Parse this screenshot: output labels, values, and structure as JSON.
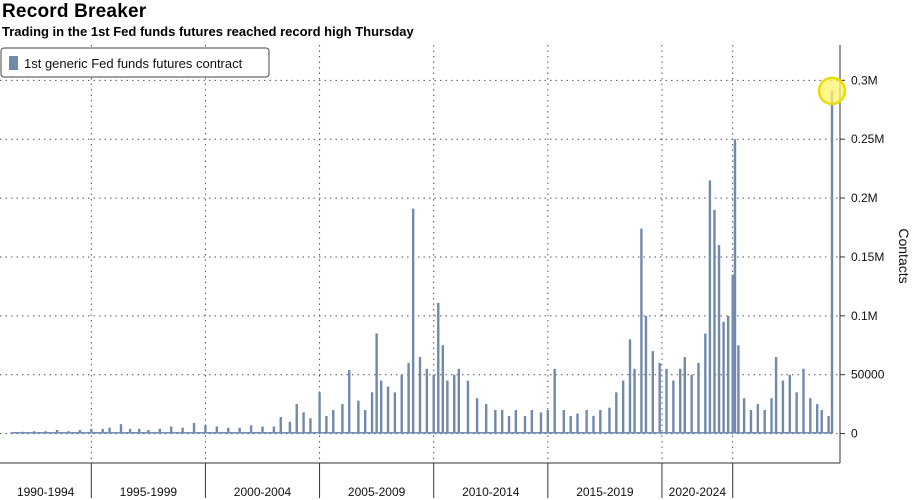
{
  "header": {
    "title": "Record Breaker",
    "subtitle": "Trading in the 1st Fed funds futures reached record high Thursday"
  },
  "legend": {
    "label": "1st generic Fed funds futures contract"
  },
  "colors": {
    "bar": "#7089ad",
    "highlight_fill": "#fff36b",
    "highlight_stroke": "#e8dc00",
    "grid": "#555555"
  },
  "chart_data": {
    "type": "bar",
    "title": "Record Breaker",
    "subtitle": "Trading in the 1st Fed funds futures reached record high Thursday",
    "ylabel": "Contacts",
    "xlabel": "",
    "xlim": [
      1988,
      2024.8
    ],
    "ylim": [
      -25000,
      330000
    ],
    "y_ticks": [
      0,
      50000,
      100000,
      150000,
      200000,
      250000,
      300000
    ],
    "y_tick_labels": [
      "0",
      "50000",
      "0.1M",
      "0.15M",
      "0.2M",
      "0.25M",
      "0.3M"
    ],
    "x_periods": [
      "1990-1994",
      "1995-1999",
      "2000-2004",
      "2005-2009",
      "2010-2014",
      "2015-2019",
      "2020-2024"
    ],
    "x_period_bounds": [
      1988,
      1992,
      1997,
      2002,
      2007,
      2012,
      2017,
      2020.1,
      2024.8
    ],
    "grid": true,
    "legend_position": "top-left",
    "series": [
      {
        "name": "1st generic Fed funds futures contract",
        "points": [
          [
            1988.5,
            1000
          ],
          [
            1989.0,
            1500
          ],
          [
            1989.5,
            2000
          ],
          [
            1990.0,
            2000
          ],
          [
            1990.5,
            3000
          ],
          [
            1991.0,
            2000
          ],
          [
            1991.5,
            3000
          ],
          [
            1992.0,
            4000
          ],
          [
            1992.5,
            4000
          ],
          [
            1992.8,
            5000
          ],
          [
            1993.3,
            8000
          ],
          [
            1993.7,
            4000
          ],
          [
            1994.1,
            4000
          ],
          [
            1994.5,
            3000
          ],
          [
            1995.0,
            4000
          ],
          [
            1995.5,
            6000
          ],
          [
            1996.0,
            5000
          ],
          [
            1996.5,
            9000
          ],
          [
            1997.0,
            7000
          ],
          [
            1997.5,
            6000
          ],
          [
            1998.0,
            5000
          ],
          [
            1998.5,
            5000
          ],
          [
            1999.0,
            7000
          ],
          [
            1999.5,
            6000
          ],
          [
            2000.0,
            6000
          ],
          [
            2000.3,
            14000
          ],
          [
            2000.7,
            10000
          ],
          [
            2001.0,
            25000
          ],
          [
            2001.3,
            18000
          ],
          [
            2001.6,
            13000
          ],
          [
            2002.0,
            35000
          ],
          [
            2002.3,
            15000
          ],
          [
            2002.6,
            20000
          ],
          [
            2003.0,
            25000
          ],
          [
            2003.3,
            54000
          ],
          [
            2003.7,
            28000
          ],
          [
            2004.0,
            20000
          ],
          [
            2004.3,
            35000
          ],
          [
            2004.5,
            85000
          ],
          [
            2004.7,
            45000
          ],
          [
            2005.0,
            40000
          ],
          [
            2005.3,
            35000
          ],
          [
            2005.6,
            50000
          ],
          [
            2005.9,
            60000
          ],
          [
            2006.1,
            191000
          ],
          [
            2006.4,
            65000
          ],
          [
            2006.7,
            55000
          ],
          [
            2007.0,
            50000
          ],
          [
            2007.2,
            111000
          ],
          [
            2007.4,
            75000
          ],
          [
            2007.6,
            45000
          ],
          [
            2007.9,
            50000
          ],
          [
            2008.1,
            55000
          ],
          [
            2008.5,
            45000
          ],
          [
            2008.9,
            30000
          ],
          [
            2009.3,
            25000
          ],
          [
            2009.7,
            20000
          ],
          [
            2010.0,
            20000
          ],
          [
            2010.3,
            15000
          ],
          [
            2010.6,
            20000
          ],
          [
            2011.0,
            15000
          ],
          [
            2011.3,
            20000
          ],
          [
            2011.7,
            18000
          ],
          [
            2012.0,
            20000
          ],
          [
            2012.3,
            55000
          ],
          [
            2012.7,
            20000
          ],
          [
            2013.0,
            15000
          ],
          [
            2013.3,
            17000
          ],
          [
            2013.7,
            20000
          ],
          [
            2014.0,
            15000
          ],
          [
            2014.3,
            20000
          ],
          [
            2014.7,
            22000
          ],
          [
            2015.0,
            35000
          ],
          [
            2015.3,
            45000
          ],
          [
            2015.6,
            80000
          ],
          [
            2015.8,
            55000
          ],
          [
            2016.1,
            174000
          ],
          [
            2016.3,
            100000
          ],
          [
            2016.6,
            70000
          ],
          [
            2016.9,
            60000
          ],
          [
            2017.2,
            55000
          ],
          [
            2017.5,
            45000
          ],
          [
            2017.8,
            55000
          ],
          [
            2018.0,
            65000
          ],
          [
            2018.3,
            50000
          ],
          [
            2018.6,
            60000
          ],
          [
            2018.9,
            85000
          ],
          [
            2019.1,
            215000
          ],
          [
            2019.3,
            190000
          ],
          [
            2019.5,
            160000
          ],
          [
            2019.7,
            95000
          ],
          [
            2019.9,
            100000
          ],
          [
            2020.1,
            135000
          ],
          [
            2020.2,
            250000
          ],
          [
            2020.35,
            75000
          ],
          [
            2020.6,
            30000
          ],
          [
            2020.9,
            20000
          ],
          [
            2021.2,
            25000
          ],
          [
            2021.5,
            20000
          ],
          [
            2021.8,
            30000
          ],
          [
            2022.0,
            65000
          ],
          [
            2022.3,
            45000
          ],
          [
            2022.6,
            50000
          ],
          [
            2022.9,
            35000
          ],
          [
            2023.2,
            55000
          ],
          [
            2023.5,
            30000
          ],
          [
            2023.8,
            25000
          ],
          [
            2024.0,
            20000
          ],
          [
            2024.3,
            15000
          ],
          [
            2024.45,
            291000
          ]
        ]
      }
    ],
    "highlight": {
      "x": 2024.45,
      "y": 291000
    }
  }
}
